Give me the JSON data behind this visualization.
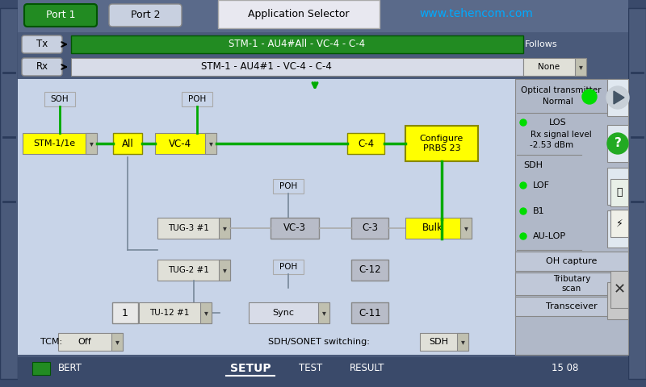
{
  "bg_color": "#3a4a6b",
  "main_bg": "#c8d0e0",
  "right_panel_bg": "#b0b8c8",
  "title_bar_bg": "#d0d8e8",
  "green_btn_bg": "#228B22",
  "yellow_box_bg": "#ffff00",
  "gray_box_bg": "#b0b8c8",
  "white_box_bg": "#e8e8e8",
  "dark_gray_bg": "#808898",
  "tx_bar_bg": "#228B22",
  "rx_bar_bg": "#d0d8e8",
  "port1_label": "Port 1",
  "port2_label": "Port 2",
  "app_selector": "Application Selector",
  "watermark": "www.tehencom.com",
  "tx_label": "Tx",
  "rx_label": "Rx",
  "tx_path": "STM-1 - AU4#All - VC-4 - C-4",
  "rx_path": "STM-1 - AU4#1 - VC-4 - C-4",
  "follows_label": "Follows",
  "none_label": "None",
  "soh_label": "SOH",
  "poh_label": "POH",
  "stm_label": "STM-1/1e",
  "all_label": "All",
  "vc4_label": "VC-4",
  "c4_label": "C-4",
  "configure_label": "Configure\nPRBS 23",
  "tug3_label": "TUG-3 #1",
  "vc3_label": "VC-3",
  "c3_label": "C-3",
  "bulk_label": "Bulk",
  "tug2_label": "TUG-2 #1",
  "poh2_label": "POH",
  "c12_label": "C-12",
  "num1_label": "1",
  "tu12_label": "TU-12 #1",
  "sync_label": "Sync",
  "c11_label": "C-11",
  "tcm_label": "TCM:",
  "off_label": "Off",
  "sdh_sonet_label": "SDH/SONET switching:",
  "sdh_label": "SDH",
  "opt_trans_label": "Optical transmitter",
  "normal_label": "Normal",
  "los_label": "LOS",
  "rx_sig_label": "Rx signal level",
  "rx_val_label": "-2.53 dBm",
  "sdh_section_label": "SDH",
  "lof_label": "LOF",
  "b1_label": "B1",
  "aulop_label": "AU-LOP",
  "oh_capture_label": "OH capture",
  "trib_scan_label": "Tributary\nscan",
  "transceiver_label": "Transceiver",
  "bert_label": "BERT",
  "setup_label": "SETUP",
  "test_label": "TEST",
  "result_label": "RESULT",
  "time_label": "15 08"
}
